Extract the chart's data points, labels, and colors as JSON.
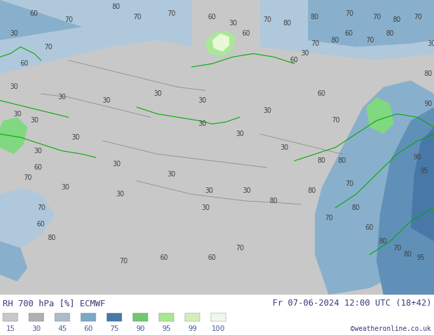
{
  "title_left": "RH 700 hPa [%] ECMWF",
  "title_right": "Fr 07-06-2024 12:00 UTC (18+42)",
  "credit": "©weatheronline.co.uk",
  "legend_values": [
    15,
    30,
    45,
    60,
    75,
    90,
    95,
    99,
    100
  ],
  "legend_colors": [
    "#c8c8c8",
    "#b0b0b0",
    "#aabccc",
    "#7ca8c8",
    "#4878a8",
    "#70c870",
    "#a8e890",
    "#d0f0b8",
    "#f0f8e8"
  ],
  "text_color": "#3a3a7a",
  "credit_color": "#3a3a7a",
  "font_size_title": 9,
  "font_size_legend": 8,
  "font_size_credit": 7,
  "map_colors": {
    "bg_gray": "#c0c0c0",
    "light_gray": "#c8c8c8",
    "med_gray": "#b8b8b8",
    "blue_light": "#b0c8dc",
    "blue_med": "#88b0cc",
    "blue_dark": "#6090b8",
    "blue_deeper": "#4878a8",
    "green_bright": "#80d880",
    "green_light": "#a8e898",
    "green_very_light": "#c8f0b0",
    "white_green": "#e8f8d8",
    "sea_blue": "#a0b8cc"
  }
}
